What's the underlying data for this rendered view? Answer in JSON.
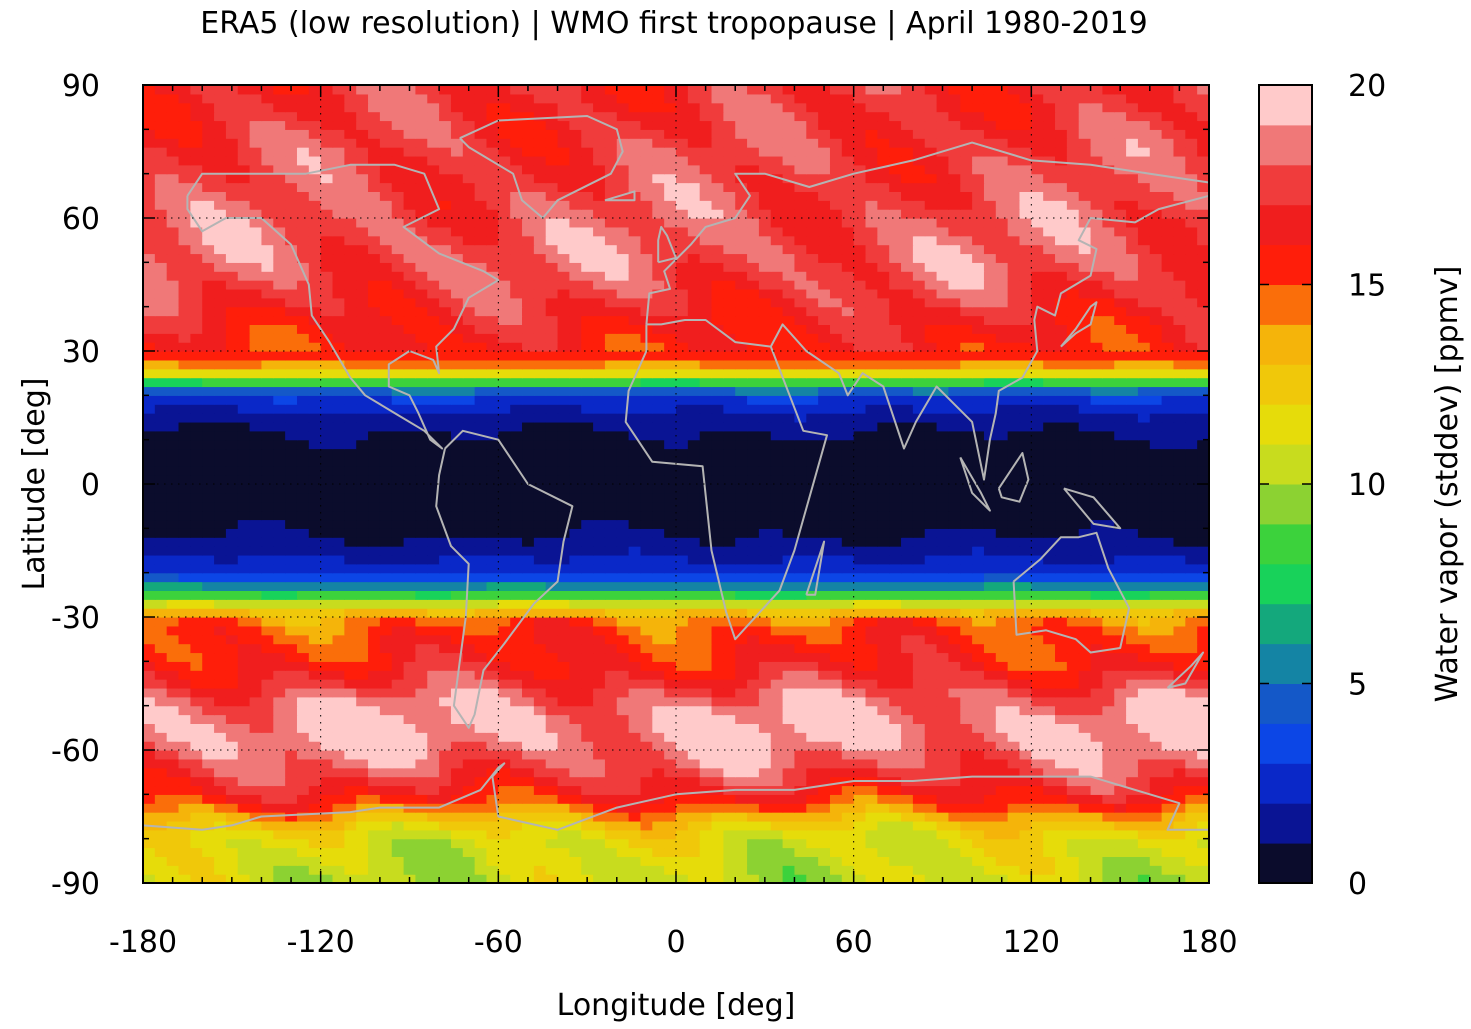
{
  "chart_data": {
    "type": "heatmap",
    "title": "ERA5 (low resolution) | WMO first tropopause | April 1980-2019",
    "xlabel": "Longitude [deg]",
    "ylabel": "Latitude [deg]",
    "xlim": [
      -180,
      180
    ],
    "ylim": [
      -90,
      90
    ],
    "x_ticks": [
      -180,
      -120,
      -60,
      0,
      60,
      120,
      180
    ],
    "y_ticks": [
      90,
      60,
      30,
      0,
      -30,
      -60,
      -90
    ],
    "x_tick_labels": [
      "-180",
      "-120",
      "-60",
      "0",
      "60",
      "120",
      "180"
    ],
    "y_tick_labels": [
      "90",
      "60",
      "30",
      "0",
      "-30",
      "-60",
      "-90"
    ],
    "grid": true,
    "grid_style": "dotted",
    "coastline_color": "#b4b4b4",
    "colorbar": {
      "label": "Water vapor (stddev) [ppmv]",
      "range": [
        0,
        20
      ],
      "ticks": [
        0,
        5,
        10,
        15,
        20
      ],
      "tick_labels": [
        "0",
        "5",
        "10",
        "15",
        "20"
      ],
      "levels": [
        {
          "from": 0,
          "to": 1,
          "color": "#0b0c2c"
        },
        {
          "from": 1,
          "to": 2,
          "color": "#0a1494"
        },
        {
          "from": 2,
          "to": 3,
          "color": "#0a28c8"
        },
        {
          "from": 3,
          "to": 4,
          "color": "#0c46e6"
        },
        {
          "from": 4,
          "to": 5,
          "color": "#1458c8"
        },
        {
          "from": 5,
          "to": 6,
          "color": "#1484a4"
        },
        {
          "from": 6,
          "to": 7,
          "color": "#14a87c"
        },
        {
          "from": 7,
          "to": 8,
          "color": "#18d25a"
        },
        {
          "from": 8,
          "to": 9,
          "color": "#3cd23c"
        },
        {
          "from": 9,
          "to": 10,
          "color": "#8cd232"
        },
        {
          "from": 10,
          "to": 11,
          "color": "#c8dc1e"
        },
        {
          "from": 11,
          "to": 12,
          "color": "#e6dc0a"
        },
        {
          "from": 12,
          "to": 13,
          "color": "#f0c80a"
        },
        {
          "from": 13,
          "to": 14,
          "color": "#f5b40a"
        },
        {
          "from": 14,
          "to": 15,
          "color": "#fa6e0a"
        },
        {
          "from": 15,
          "to": 16,
          "color": "#ff1e0a"
        },
        {
          "from": 16,
          "to": 17,
          "color": "#f01e1e"
        },
        {
          "from": 17,
          "to": 18,
          "color": "#f03c3c"
        },
        {
          "from": 18,
          "to": 19,
          "color": "#f07878"
        },
        {
          "from": 19,
          "to": 20,
          "color": "#ffcaca"
        }
      ]
    },
    "lat_profile": {
      "lat": [
        -90,
        -85,
        -80,
        -76,
        -72,
        -68,
        -64,
        -60,
        -56,
        -52,
        -48,
        -44,
        -40,
        -36,
        -33,
        -30,
        -28,
        -26,
        -24,
        -22,
        -20,
        -16,
        -12,
        -8,
        -4,
        0,
        4,
        8,
        12,
        16,
        20,
        22,
        24,
        26,
        28,
        30,
        34,
        38,
        42,
        46,
        50,
        55,
        60,
        65,
        70,
        75,
        80,
        85,
        90
      ],
      "value": [
        10.5,
        10.8,
        11.2,
        12.8,
        15.2,
        16.8,
        17.8,
        18.7,
        19.2,
        19.0,
        18.2,
        17.0,
        16.0,
        15.6,
        15.2,
        14.2,
        12.0,
        9.5,
        7.0,
        4.5,
        2.8,
        1.8,
        1.0,
        0.6,
        0.4,
        0.4,
        0.4,
        0.6,
        1.0,
        1.8,
        3.2,
        6.5,
        10.0,
        13.0,
        15.2,
        15.8,
        16.2,
        16.6,
        17.2,
        17.6,
        18.0,
        18.0,
        17.8,
        17.6,
        17.4,
        17.4,
        17.2,
        17.0,
        17.0
      ]
    }
  }
}
